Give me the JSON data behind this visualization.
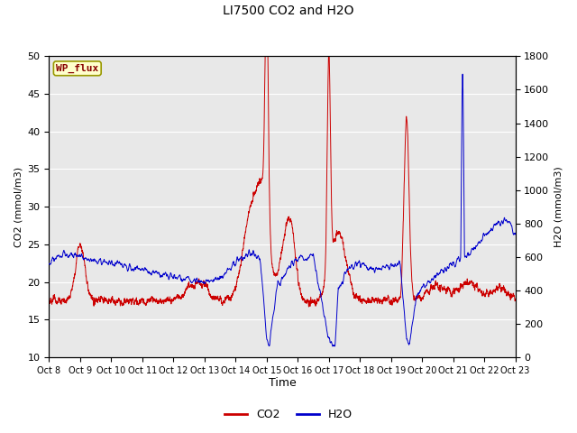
{
  "title": "LI7500 CO2 and H2O",
  "xlabel": "Time",
  "ylabel_left": "CO2 (mmol/m3)",
  "ylabel_right": "H2O (mmol/m3)",
  "legend_label": "WP_flux",
  "co2_color": "#cc0000",
  "h2o_color": "#0000cc",
  "ylim_left": [
    10,
    50
  ],
  "ylim_right": [
    0,
    1800
  ],
  "yticks_left": [
    10,
    15,
    20,
    25,
    30,
    35,
    40,
    45,
    50
  ],
  "yticks_right": [
    0,
    200,
    400,
    600,
    800,
    1000,
    1200,
    1400,
    1600,
    1800
  ],
  "xtick_labels": [
    "Oct 8",
    "Oct 9",
    "Oct 10",
    "Oct 11",
    "Oct 12",
    "Oct 13",
    "Oct 14",
    "Oct 15",
    "Oct 16",
    "Oct 17",
    "Oct 18",
    "Oct 19",
    "Oct 20",
    "Oct 21",
    "Oct 22",
    "Oct 23"
  ],
  "bg_color": "#e8e8e8",
  "fig_bg_color": "#ffffff",
  "legend_box_color": "#ffffcc",
  "legend_box_edge": "#999900",
  "legend_text_color": "#880000",
  "grid_color": "#ffffff",
  "num_points": 5000,
  "line_width": 0.7
}
